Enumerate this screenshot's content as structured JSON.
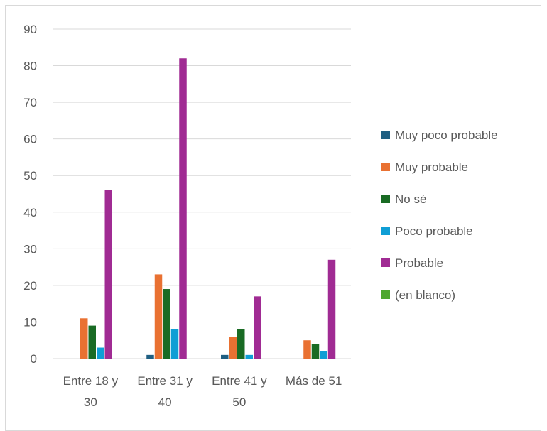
{
  "chart_data": {
    "type": "bar",
    "title": "",
    "xlabel": "",
    "ylabel": "",
    "ylim": [
      0,
      90
    ],
    "yticks": [
      0,
      10,
      20,
      30,
      40,
      50,
      60,
      70,
      80,
      90
    ],
    "grid": true,
    "legend": "right",
    "categories": [
      [
        "Entre 18 y",
        "30"
      ],
      [
        "Entre 31 y",
        "40"
      ],
      [
        "Entre 41 y",
        "50"
      ],
      [
        "Más de 51"
      ]
    ],
    "series": [
      {
        "name": "Muy poco probable",
        "color": "#1f5f82",
        "values": [
          0,
          1,
          1,
          0
        ]
      },
      {
        "name": "Muy probable",
        "color": "#e97132",
        "values": [
          11,
          23,
          6,
          5
        ]
      },
      {
        "name": "No sé",
        "color": "#196b24",
        "values": [
          9,
          19,
          8,
          4
        ]
      },
      {
        "name": "Poco probable",
        "color": "#0f9ed5",
        "values": [
          3,
          8,
          1,
          2
        ]
      },
      {
        "name": "Probable",
        "color": "#a02b93",
        "values": [
          46,
          82,
          17,
          27
        ]
      },
      {
        "name": "(en blanco)",
        "color": "#4ea72e",
        "values": [
          0,
          0,
          0,
          0
        ]
      }
    ]
  }
}
